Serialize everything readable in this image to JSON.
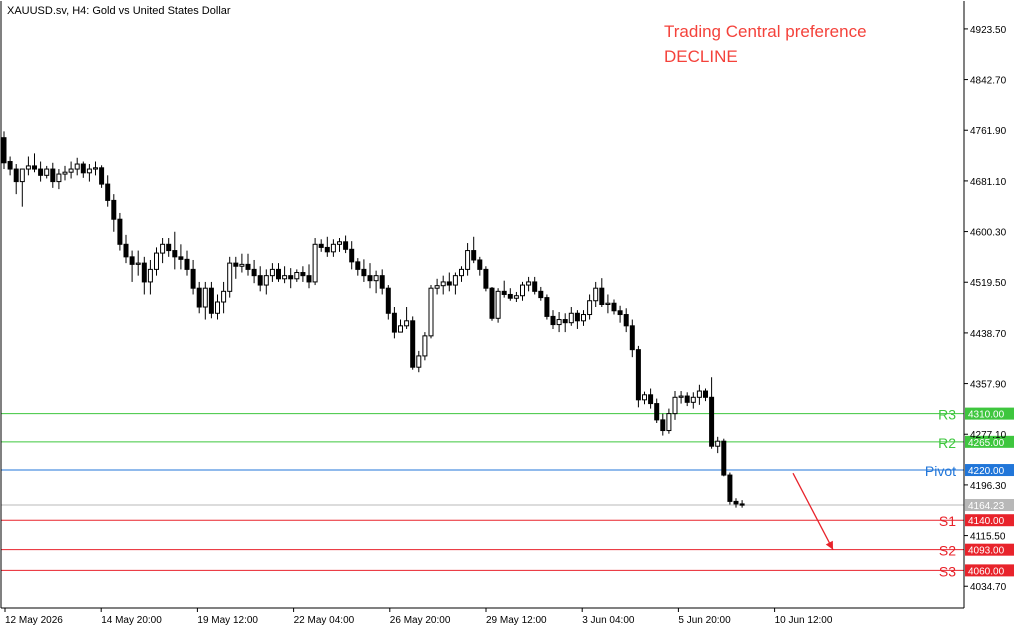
{
  "header": {
    "symbol_label": "XAUUSD.sv, H4:  Gold vs United States Dollar"
  },
  "annotation": {
    "line1": "Trading Central preference",
    "line2": "DECLINE",
    "color": "#f4423b"
  },
  "colors": {
    "resistance": "#3ec63e",
    "pivot": "#2176d9",
    "support": "#e8232b",
    "candle": "#000000",
    "grid_border": "#000000",
    "current_price": "#b8b8b8"
  },
  "chart_data": {
    "type": "candlestick",
    "ylim": [
      4000,
      4968
    ],
    "yticks": [
      "4923.50",
      "4842.70",
      "4761.90",
      "4681.10",
      "4600.30",
      "4519.50",
      "4438.70",
      "4357.90",
      "4277.10",
      "4196.30",
      "4115.50",
      "4034.70"
    ],
    "xticks": [
      "12 May 2026",
      "14 May 20:00",
      "19 May 12:00",
      "22 May 04:00",
      "26 May 20:00",
      "29 May 12:00",
      "3 Jun 04:00",
      "5 Jun 20:00",
      "10 Jun 12:00"
    ],
    "current_price": {
      "value": 4164.23,
      "label": "4164.23"
    },
    "levels": [
      {
        "name": "R3",
        "value": 4310.0,
        "label": "4310.00",
        "kind": "resistance"
      },
      {
        "name": "R2",
        "value": 4265.0,
        "label": "4265.00",
        "kind": "resistance"
      },
      {
        "name": "Pivot",
        "value": 4220.0,
        "label": "4220.00",
        "kind": "pivot"
      },
      {
        "name": "S1",
        "value": 4140.0,
        "label": "4140.00",
        "kind": "support"
      },
      {
        "name": "S2",
        "value": 4093.0,
        "label": "4093.00",
        "kind": "support"
      },
      {
        "name": "S3",
        "value": 4060.0,
        "label": "4060.00",
        "kind": "support"
      }
    ],
    "forecast_arrow": {
      "from": [
        4214,
        4215
      ],
      "to": [
        4267,
        4093
      ]
    },
    "ohlc": [
      [
        4750,
        4760,
        4700,
        4710
      ],
      [
        4712,
        4720,
        4690,
        4700
      ],
      [
        4700,
        4708,
        4660,
        4680
      ],
      [
        4680,
        4700,
        4640,
        4700
      ],
      [
        4700,
        4720,
        4690,
        4705
      ],
      [
        4705,
        4725,
        4695,
        4700
      ],
      [
        4700,
        4712,
        4680,
        4690
      ],
      [
        4690,
        4705,
        4685,
        4700
      ],
      [
        4700,
        4710,
        4670,
        4680
      ],
      [
        4680,
        4700,
        4668,
        4692
      ],
      [
        4692,
        4705,
        4682,
        4695
      ],
      [
        4695,
        4712,
        4685,
        4700
      ],
      [
        4700,
        4718,
        4690,
        4708
      ],
      [
        4708,
        4712,
        4686,
        4694
      ],
      [
        4694,
        4708,
        4680,
        4700
      ],
      [
        4700,
        4712,
        4690,
        4702
      ],
      [
        4702,
        4706,
        4670,
        4676
      ],
      [
        4676,
        4690,
        4640,
        4650
      ],
      [
        4650,
        4660,
        4600,
        4620
      ],
      [
        4620,
        4630,
        4570,
        4580
      ],
      [
        4580,
        4595,
        4550,
        4560
      ],
      [
        4560,
        4570,
        4520,
        4548
      ],
      [
        4548,
        4570,
        4530,
        4550
      ],
      [
        4550,
        4560,
        4500,
        4520
      ],
      [
        4520,
        4555,
        4500,
        4540
      ],
      [
        4540,
        4575,
        4530,
        4566
      ],
      [
        4566,
        4590,
        4550,
        4580
      ],
      [
        4580,
        4590,
        4560,
        4570
      ],
      [
        4570,
        4600,
        4540,
        4560
      ],
      [
        4560,
        4580,
        4540,
        4556
      ],
      [
        4556,
        4570,
        4530,
        4540
      ],
      [
        4540,
        4555,
        4500,
        4510
      ],
      [
        4510,
        4520,
        4470,
        4480
      ],
      [
        4480,
        4520,
        4460,
        4510
      ],
      [
        4510,
        4520,
        4462,
        4470
      ],
      [
        4470,
        4500,
        4460,
        4488
      ],
      [
        4488,
        4520,
        4470,
        4505
      ],
      [
        4505,
        4560,
        4495,
        4550
      ],
      [
        4550,
        4560,
        4525,
        4545
      ],
      [
        4545,
        4565,
        4535,
        4548
      ],
      [
        4548,
        4565,
        4530,
        4540
      ],
      [
        4540,
        4555,
        4518,
        4530
      ],
      [
        4530,
        4545,
        4505,
        4515
      ],
      [
        4515,
        4540,
        4500,
        4530
      ],
      [
        4530,
        4550,
        4520,
        4540
      ],
      [
        4540,
        4550,
        4520,
        4525
      ],
      [
        4525,
        4545,
        4518,
        4530
      ],
      [
        4530,
        4542,
        4510,
        4525
      ],
      [
        4525,
        4540,
        4520,
        4535
      ],
      [
        4535,
        4545,
        4520,
        4530
      ],
      [
        4530,
        4548,
        4510,
        4520
      ],
      [
        4520,
        4590,
        4515,
        4580
      ],
      [
        4580,
        4588,
        4568,
        4575
      ],
      [
        4575,
        4592,
        4560,
        4568
      ],
      [
        4568,
        4588,
        4560,
        4580
      ],
      [
        4580,
        4590,
        4568,
        4584
      ],
      [
        4584,
        4594,
        4566,
        4572
      ],
      [
        4572,
        4585,
        4540,
        4552
      ],
      [
        4552,
        4558,
        4530,
        4540
      ],
      [
        4540,
        4556,
        4520,
        4530
      ],
      [
        4530,
        4550,
        4510,
        4522
      ],
      [
        4522,
        4538,
        4502,
        4530
      ],
      [
        4530,
        4540,
        4500,
        4510
      ],
      [
        4510,
        4515,
        4460,
        4470
      ],
      [
        4470,
        4480,
        4430,
        4440
      ],
      [
        4440,
        4460,
        4440,
        4450
      ],
      [
        4450,
        4480,
        4445,
        4458
      ],
      [
        4458,
        4465,
        4380,
        4384
      ],
      [
        4384,
        4410,
        4376,
        4402
      ],
      [
        4402,
        4440,
        4395,
        4434
      ],
      [
        4434,
        4515,
        4430,
        4510
      ],
      [
        4510,
        4525,
        4500,
        4514
      ],
      [
        4514,
        4530,
        4500,
        4520
      ],
      [
        4520,
        4535,
        4505,
        4515
      ],
      [
        4515,
        4535,
        4500,
        4530
      ],
      [
        4530,
        4545,
        4520,
        4540
      ],
      [
        4540,
        4582,
        4530,
        4570
      ],
      [
        4570,
        4592,
        4550,
        4555
      ],
      [
        4555,
        4560,
        4530,
        4540
      ],
      [
        4540,
        4545,
        4505,
        4510
      ],
      [
        4510,
        4512,
        4458,
        4462
      ],
      [
        4462,
        4510,
        4455,
        4505
      ],
      [
        4505,
        4522,
        4495,
        4500
      ],
      [
        4500,
        4510,
        4490,
        4494
      ],
      [
        4494,
        4504,
        4488,
        4498
      ],
      [
        4498,
        4520,
        4490,
        4515
      ],
      [
        4515,
        4528,
        4505,
        4520
      ],
      [
        4520,
        4528,
        4500,
        4505
      ],
      [
        4505,
        4512,
        4490,
        4495
      ],
      [
        4495,
        4500,
        4460,
        4465
      ],
      [
        4465,
        4475,
        4445,
        4452
      ],
      [
        4452,
        4472,
        4440,
        4460
      ],
      [
        4460,
        4470,
        4440,
        4455
      ],
      [
        4455,
        4480,
        4450,
        4470
      ],
      [
        4470,
        4475,
        4445,
        4458
      ],
      [
        4458,
        4475,
        4450,
        4468
      ],
      [
        4468,
        4500,
        4460,
        4490
      ],
      [
        4490,
        4520,
        4480,
        4510
      ],
      [
        4510,
        4526,
        4480,
        4484
      ],
      [
        4484,
        4500,
        4470,
        4486
      ],
      [
        4486,
        4492,
        4468,
        4474
      ],
      [
        4474,
        4482,
        4455,
        4468
      ],
      [
        4468,
        4478,
        4440,
        4450
      ],
      [
        4450,
        4460,
        4400,
        4412
      ],
      [
        4412,
        4418,
        4320,
        4332
      ],
      [
        4332,
        4345,
        4325,
        4340
      ],
      [
        4340,
        4350,
        4318,
        4326
      ],
      [
        4326,
        4334,
        4295,
        4300
      ],
      [
        4300,
        4310,
        4275,
        4283
      ],
      [
        4283,
        4318,
        4278,
        4310
      ],
      [
        4310,
        4346,
        4300,
        4336
      ],
      [
        4336,
        4346,
        4326,
        4338
      ],
      [
        4338,
        4344,
        4322,
        4328
      ],
      [
        4328,
        4344,
        4318,
        4336
      ],
      [
        4336,
        4356,
        4324,
        4346
      ],
      [
        4346,
        4350,
        4330,
        4336
      ],
      [
        4336,
        4368,
        4254,
        4258
      ],
      [
        4258,
        4273,
        4247,
        4266
      ],
      [
        4266,
        4270,
        4210,
        4212
      ],
      [
        4212,
        4216,
        4165,
        4170
      ],
      [
        4170,
        4175,
        4160,
        4166
      ],
      [
        4166,
        4172,
        4160,
        4164
      ]
    ]
  }
}
